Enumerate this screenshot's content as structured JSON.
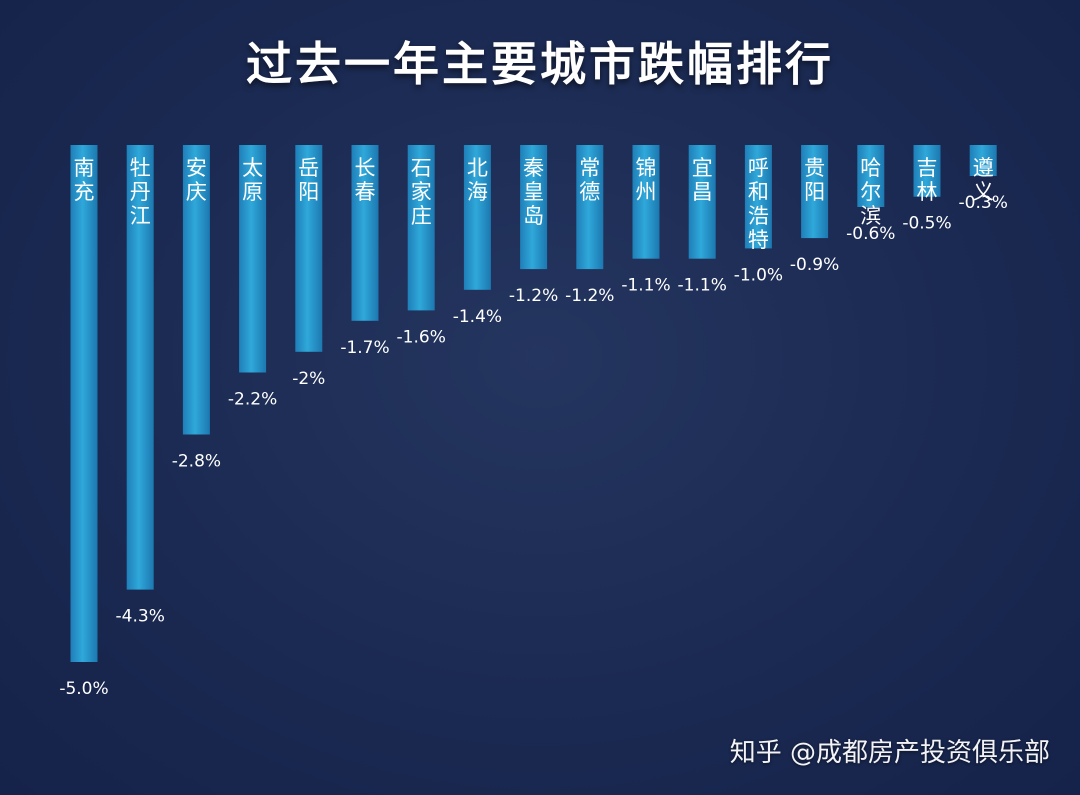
{
  "chart_data": {
    "type": "bar",
    "title": "过去一年主要城市跌幅排行",
    "orientation": "vertical-down",
    "categories": [
      "南充",
      "牡丹江",
      "安庆",
      "太原",
      "岳阳",
      "长春",
      "石家庄",
      "北海",
      "秦皇岛",
      "常德",
      "锦州",
      "宜昌",
      "呼和浩特",
      "贵阳",
      "哈尔滨",
      "吉林",
      "遵义"
    ],
    "values": [
      -5.0,
      -4.3,
      -2.8,
      -2.2,
      -2.0,
      -1.7,
      -1.6,
      -1.4,
      -1.2,
      -1.2,
      -1.1,
      -1.1,
      -1.0,
      -0.9,
      -0.6,
      -0.5,
      -0.3
    ],
    "value_labels": [
      "-5.0%",
      "-4.3%",
      "-2.8%",
      "-2.2%",
      "-2%",
      "-1.7%",
      "-1.6%",
      "-1.4%",
      "-1.2%",
      "-1.2%",
      "-1.1%",
      "-1.1%",
      "-1.0%",
      "-0.9%",
      "-0.6%",
      "-0.5%",
      "-0.3%"
    ],
    "unit": "%",
    "ylim": [
      -5.0,
      0
    ],
    "grid": false,
    "legend": "none",
    "bar_color": "#2a9fd0"
  },
  "watermark": "知乎 @成都房产投资俱乐部"
}
